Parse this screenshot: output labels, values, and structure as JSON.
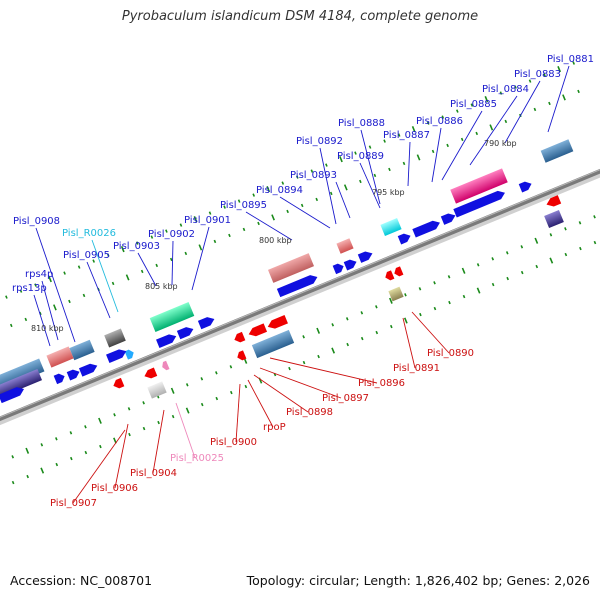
{
  "title": "Pyrobaculum islandicum DSM 4184, complete genome",
  "footer": {
    "accession": "Accession: NC_008701",
    "summary": "Topology: circular; Length: 1,826,402 bp; Genes: 2,026"
  },
  "colors": {
    "forward_label": "#1a1acc",
    "reverse_label": "#cc1111",
    "rna_forward": "#22bbdd",
    "rna_reverse": "#ee88bb",
    "backbone": "#808080",
    "cds_blue": "#1010e0",
    "cds_red": "#ee0000",
    "gc_tick": "#1a8a1a"
  },
  "scale_labels": [
    {
      "text": "790 kbp",
      "kbp": 790
    },
    {
      "text": "795 kbp",
      "kbp": 795
    },
    {
      "text": "800 kbp",
      "kbp": 800
    },
    {
      "text": "805 kbp",
      "kbp": 805
    },
    {
      "text": "810 kbp",
      "kbp": 810
    }
  ],
  "forward_labels": [
    {
      "text": "Pisl_0881"
    },
    {
      "text": "Pisl_0883"
    },
    {
      "text": "Pisl_0884"
    },
    {
      "text": "Pisl_0885"
    },
    {
      "text": "Pisl_0886"
    },
    {
      "text": "Pisl_0887"
    },
    {
      "text": "Pisl_0888"
    },
    {
      "text": "Pisl_0889"
    },
    {
      "text": "Pisl_0892"
    },
    {
      "text": "Pisl_0893"
    },
    {
      "text": "Pisl_0894"
    },
    {
      "text": "Pisl_0895"
    },
    {
      "text": "Pisl_0901"
    },
    {
      "text": "Pisl_0902"
    },
    {
      "text": "Pisl_0903"
    },
    {
      "text": "Pisl_R0026"
    },
    {
      "text": "Pisl_0905"
    },
    {
      "text": "Pisl_0908"
    },
    {
      "text": "rps4p"
    },
    {
      "text": "rps13p"
    }
  ],
  "reverse_labels": [
    {
      "text": "Pisl_0890"
    },
    {
      "text": "Pisl_0891"
    },
    {
      "text": "Pisl_0896"
    },
    {
      "text": "Pisl_0897"
    },
    {
      "text": "Pisl_0898"
    },
    {
      "text": "rpoP"
    },
    {
      "text": "Pisl_0900"
    },
    {
      "text": "Pisl_R0025"
    },
    {
      "text": "Pisl_0904"
    },
    {
      "text": "Pisl_0906"
    },
    {
      "text": "Pisl_0907"
    }
  ]
}
